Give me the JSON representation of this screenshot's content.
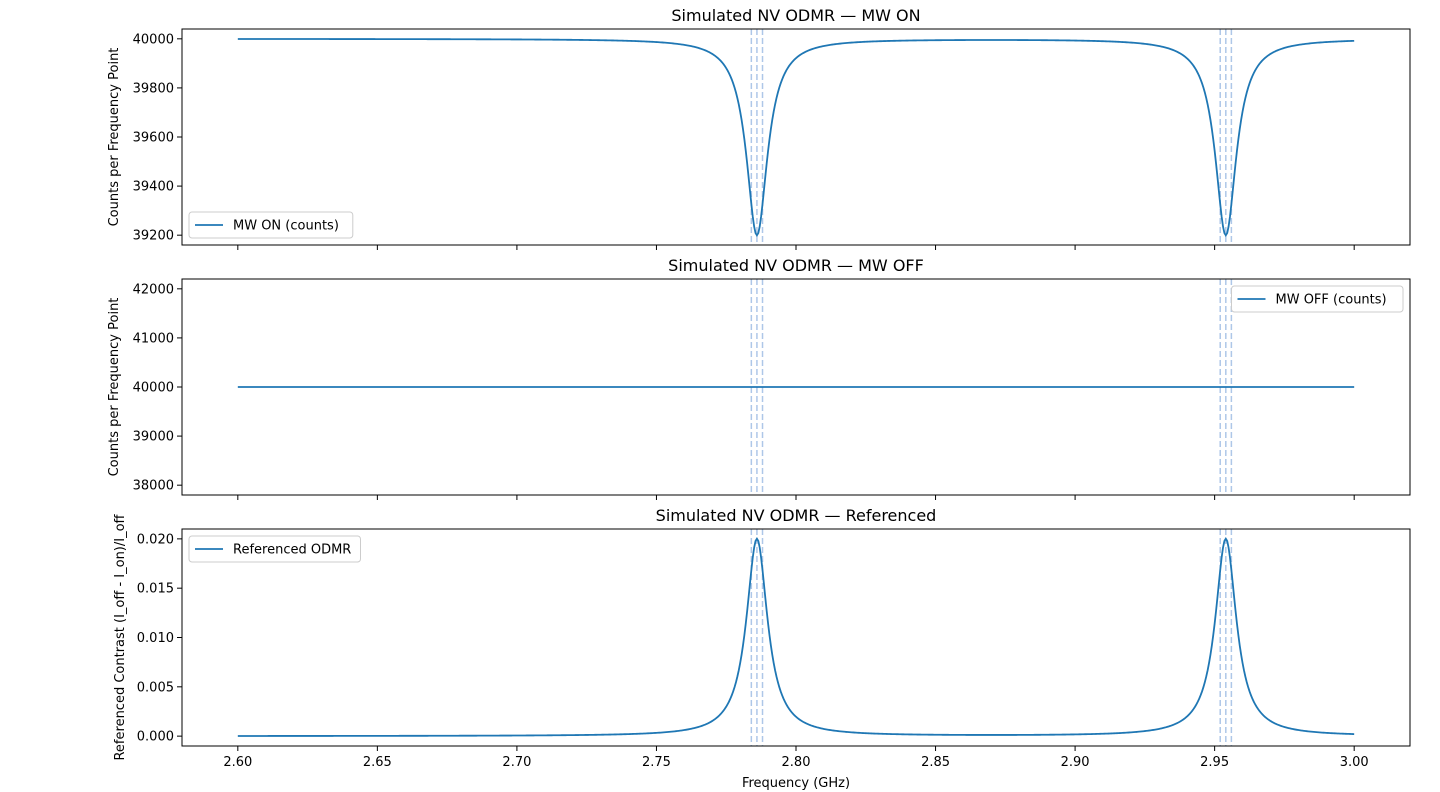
{
  "figure": {
    "xlabel": "Frequency (GHz)",
    "line_color": "#1f77b4",
    "marker_line_color": "#aec7e8"
  },
  "chart_data": [
    {
      "type": "line",
      "title": "Simulated NV ODMR — MW ON",
      "ylabel": "Counts per Frequency Point",
      "xlim": [
        2.58,
        3.02
      ],
      "ylim": [
        39160,
        40040
      ],
      "x_ticks": [
        "",
        "",
        "",
        "",
        "",
        "",
        "",
        "",
        ""
      ],
      "y_ticks": [
        {
          "value": 39200,
          "label": "39200"
        },
        {
          "value": 39400,
          "label": "39400"
        },
        {
          "value": 39600,
          "label": "39600"
        },
        {
          "value": 39800,
          "label": "39800"
        },
        {
          "value": 40000,
          "label": "40000"
        }
      ],
      "grid": false,
      "legend": {
        "position": "lower-left",
        "entries": [
          "MW ON (counts)"
        ]
      },
      "series": [
        {
          "name": "MW ON (counts)",
          "model": "lorentzian_dips",
          "baseline": 40000,
          "dip_depth": 800,
          "centers": [
            2.786,
            2.954
          ],
          "hwhm": 0.0046,
          "x_range": [
            2.6,
            3.0
          ]
        }
      ],
      "marker_lines": [
        2.784,
        2.786,
        2.788,
        2.952,
        2.954,
        2.956
      ]
    },
    {
      "type": "line",
      "title": "Simulated NV ODMR — MW OFF",
      "ylabel": "Counts per Frequency Point",
      "xlim": [
        2.58,
        3.02
      ],
      "ylim": [
        37800,
        42200
      ],
      "x_ticks": [
        "",
        "",
        "",
        "",
        "",
        "",
        "",
        "",
        ""
      ],
      "y_ticks": [
        {
          "value": 38000,
          "label": "38000"
        },
        {
          "value": 39000,
          "label": "39000"
        },
        {
          "value": 40000,
          "label": "40000"
        },
        {
          "value": 41000,
          "label": "41000"
        },
        {
          "value": 42000,
          "label": "42000"
        }
      ],
      "grid": false,
      "legend": {
        "position": "upper-right",
        "entries": [
          "MW OFF (counts)"
        ]
      },
      "series": [
        {
          "name": "MW OFF (counts)",
          "model": "constant",
          "baseline": 40000,
          "x_range": [
            2.6,
            3.0
          ]
        }
      ],
      "marker_lines": [
        2.784,
        2.786,
        2.788,
        2.952,
        2.954,
        2.956
      ]
    },
    {
      "type": "line",
      "title": "Simulated NV ODMR — Referenced",
      "ylabel": "Referenced Contrast (I_off - I_on)/I_off",
      "xlabel": "Frequency (GHz)",
      "xlim": [
        2.58,
        3.02
      ],
      "ylim": [
        -0.001,
        0.021
      ],
      "x_ticks": [
        {
          "value": 2.6,
          "label": "2.60"
        },
        {
          "value": 2.65,
          "label": "2.65"
        },
        {
          "value": 2.7,
          "label": "2.70"
        },
        {
          "value": 2.75,
          "label": "2.75"
        },
        {
          "value": 2.8,
          "label": "2.80"
        },
        {
          "value": 2.85,
          "label": "2.85"
        },
        {
          "value": 2.9,
          "label": "2.90"
        },
        {
          "value": 2.95,
          "label": "2.95"
        },
        {
          "value": 3.0,
          "label": "3.00"
        }
      ],
      "y_ticks": [
        {
          "value": 0.0,
          "label": "0.000"
        },
        {
          "value": 0.005,
          "label": "0.005"
        },
        {
          "value": 0.01,
          "label": "0.010"
        },
        {
          "value": 0.015,
          "label": "0.015"
        },
        {
          "value": 0.02,
          "label": "0.020"
        }
      ],
      "grid": false,
      "legend": {
        "position": "upper-left",
        "entries": [
          "Referenced ODMR"
        ]
      },
      "series": [
        {
          "name": "Referenced ODMR",
          "model": "lorentzian_peaks",
          "baseline": 0,
          "peak_height": 0.02,
          "centers": [
            2.786,
            2.954
          ],
          "hwhm": 0.0046,
          "x_range": [
            2.6,
            3.0
          ]
        }
      ],
      "marker_lines": [
        2.784,
        2.786,
        2.788,
        2.952,
        2.954,
        2.956
      ]
    }
  ]
}
